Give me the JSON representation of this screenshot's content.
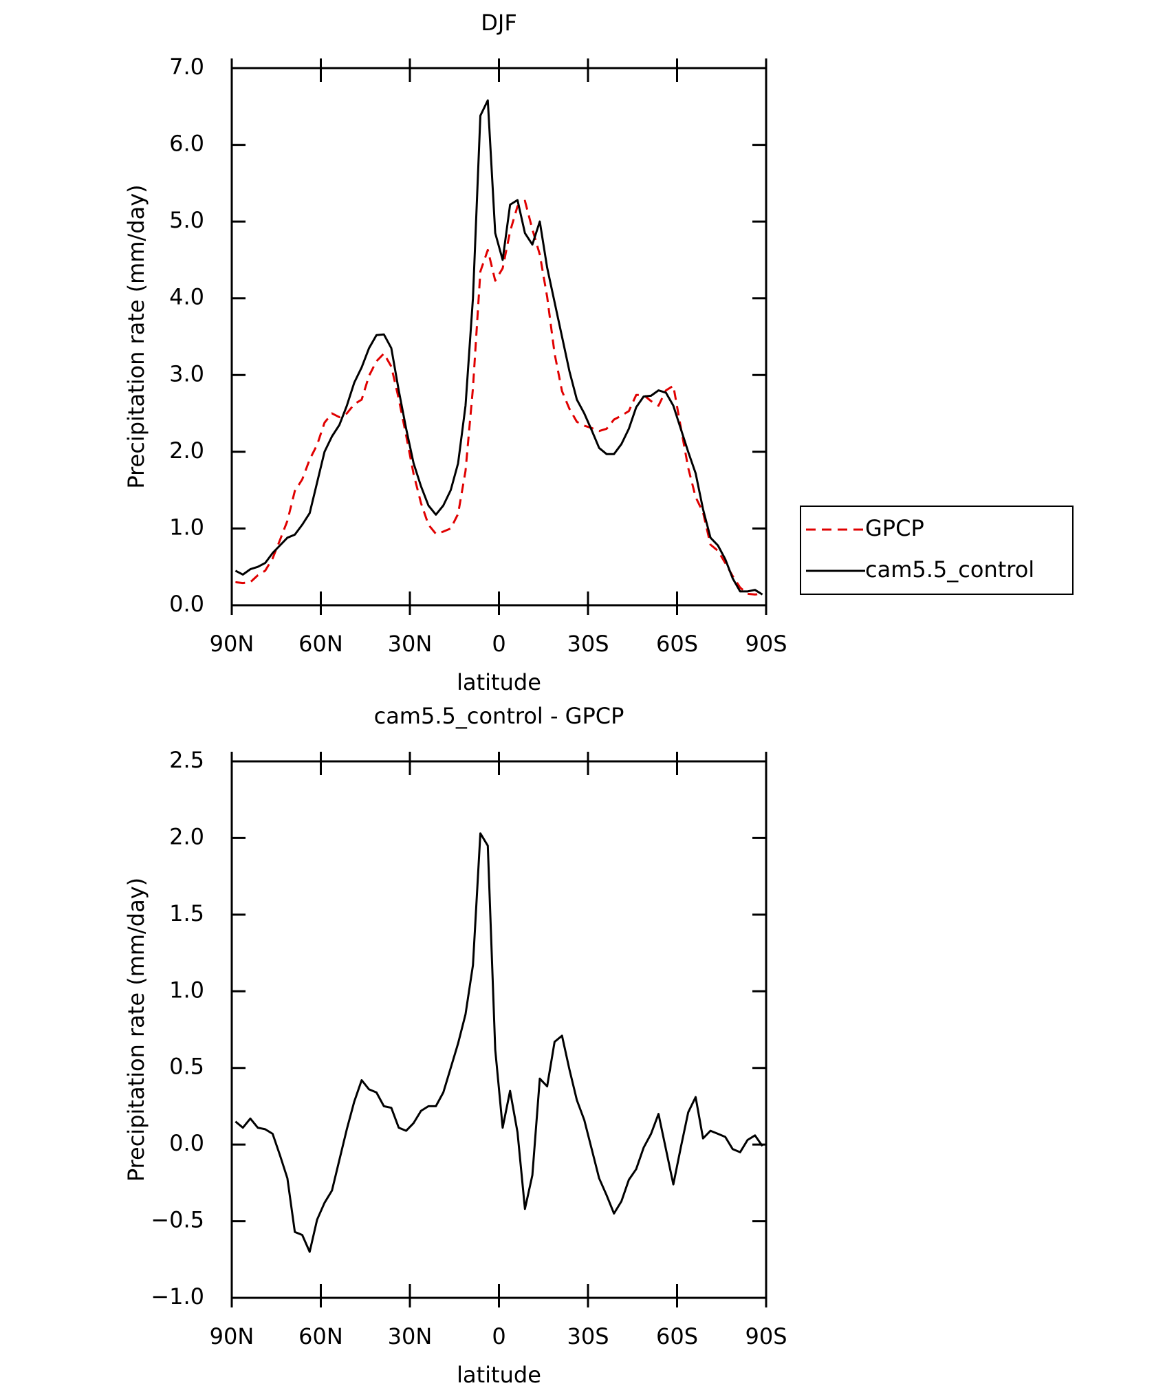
{
  "chart_data": [
    {
      "type": "line",
      "title": "DJF",
      "x_label": "latitude",
      "y_label": "Precipitation rate (mm/day)",
      "x": [
        88.75,
        86.25,
        83.75,
        81.25,
        78.75,
        76.25,
        73.75,
        71.25,
        68.75,
        66.25,
        63.75,
        61.25,
        58.75,
        56.25,
        53.75,
        51.25,
        48.75,
        46.25,
        43.75,
        41.25,
        38.75,
        36.25,
        33.75,
        31.25,
        28.75,
        26.25,
        23.75,
        21.25,
        18.75,
        16.25,
        13.75,
        11.25,
        8.75,
        6.25,
        3.75,
        1.25,
        -1.25,
        -3.75,
        -6.25,
        -8.75,
        -11.25,
        -13.75,
        -16.25,
        -18.75,
        -21.25,
        -23.75,
        -26.25,
        -28.75,
        -31.25,
        -33.75,
        -36.25,
        -38.75,
        -41.25,
        -43.75,
        -46.25,
        -48.75,
        -51.25,
        -53.75,
        -56.25,
        -58.75,
        -61.25,
        -63.75,
        -66.25,
        -68.75,
        -71.25,
        -73.75,
        -76.25,
        -78.75,
        -81.25,
        -83.75,
        -86.25,
        -88.75
      ],
      "series": [
        {
          "name": "GPCP",
          "color": "#e00000",
          "dash": true,
          "values": [
            0.3,
            0.29,
            0.3,
            0.39,
            0.45,
            0.61,
            0.85,
            1.1,
            1.49,
            1.64,
            1.9,
            2.09,
            2.38,
            2.5,
            2.45,
            2.5,
            2.62,
            2.68,
            2.99,
            3.18,
            3.28,
            3.11,
            2.69,
            2.21,
            1.71,
            1.33,
            1.05,
            0.93,
            0.96,
            1.0,
            1.19,
            1.75,
            2.83,
            4.35,
            4.63,
            4.23,
            4.39,
            4.87,
            5.2,
            5.27,
            4.9,
            4.57,
            4.02,
            3.28,
            2.79,
            2.56,
            2.39,
            2.34,
            2.31,
            2.27,
            2.3,
            2.42,
            2.47,
            2.53,
            2.74,
            2.74,
            2.66,
            2.6,
            2.8,
            2.86,
            2.32,
            1.79,
            1.41,
            1.21,
            0.79,
            0.71,
            0.55,
            0.38,
            0.23,
            0.15,
            0.14,
            0.15
          ]
        },
        {
          "name": "cam5.5_control",
          "color": "#000000",
          "dash": false,
          "values": [
            0.45,
            0.4,
            0.47,
            0.5,
            0.55,
            0.68,
            0.78,
            0.88,
            0.92,
            1.05,
            1.2,
            1.6,
            2.0,
            2.2,
            2.35,
            2.6,
            2.9,
            3.1,
            3.35,
            3.52,
            3.53,
            3.35,
            2.8,
            2.3,
            1.85,
            1.55,
            1.3,
            1.18,
            1.3,
            1.5,
            1.85,
            2.6,
            4.0,
            6.38,
            6.58,
            4.85,
            4.5,
            5.22,
            5.28,
            4.85,
            4.7,
            5.0,
            4.4,
            3.95,
            3.5,
            3.05,
            2.68,
            2.5,
            2.28,
            2.05,
            1.97,
            1.97,
            2.1,
            2.3,
            2.58,
            2.72,
            2.73,
            2.8,
            2.77,
            2.6,
            2.3,
            2.0,
            1.72,
            1.25,
            0.88,
            0.78,
            0.6,
            0.35,
            0.18,
            0.18,
            0.2,
            0.14
          ]
        }
      ],
      "xlim": [
        90,
        -90
      ],
      "xticks": [
        {
          "value": 90,
          "label": "90N"
        },
        {
          "value": 60,
          "label": "60N"
        },
        {
          "value": 30,
          "label": "30N"
        },
        0,
        {
          "value": -30,
          "label": "30S"
        },
        {
          "value": -60,
          "label": "60S"
        },
        {
          "value": -90,
          "label": "90S"
        }
      ],
      "ylim": [
        0,
        7
      ],
      "yticks": [
        {
          "value": 0,
          "label": "0.0"
        },
        {
          "value": 1,
          "label": "1.0"
        },
        {
          "value": 2,
          "label": "2.0"
        },
        {
          "value": 3,
          "label": "3.0"
        },
        {
          "value": 4,
          "label": "4.0"
        },
        {
          "value": 5,
          "label": "5.0"
        },
        {
          "value": 6,
          "label": "6.0"
        },
        {
          "value": 7,
          "label": "7.0"
        }
      ],
      "legend": "right"
    },
    {
      "type": "line",
      "title": "cam5.5_control - GPCP",
      "x_label": "latitude",
      "y_label": "Precipitation rate (mm/day)",
      "x": [
        88.75,
        86.25,
        83.75,
        81.25,
        78.75,
        76.25,
        73.75,
        71.25,
        68.75,
        66.25,
        63.75,
        61.25,
        58.75,
        56.25,
        53.75,
        51.25,
        48.75,
        46.25,
        43.75,
        41.25,
        38.75,
        36.25,
        33.75,
        31.25,
        28.75,
        26.25,
        23.75,
        21.25,
        18.75,
        16.25,
        13.75,
        11.25,
        8.75,
        6.25,
        3.75,
        1.25,
        -1.25,
        -3.75,
        -6.25,
        -8.75,
        -11.25,
        -13.75,
        -16.25,
        -18.75,
        -21.25,
        -23.75,
        -26.25,
        -28.75,
        -31.25,
        -33.75,
        -36.25,
        -38.75,
        -41.25,
        -43.75,
        -46.25,
        -48.75,
        -51.25,
        -53.75,
        -56.25,
        -58.75,
        -61.25,
        -63.75,
        -66.25,
        -68.75,
        -71.25,
        -73.75,
        -76.25,
        -78.75,
        -81.25,
        -83.75,
        -86.25,
        -88.75
      ],
      "series": [
        {
          "color": "#000000",
          "dash": false,
          "values": [
            0.15,
            0.11,
            0.17,
            0.11,
            0.1,
            0.07,
            -0.07,
            -0.22,
            -0.57,
            -0.59,
            -0.7,
            -0.49,
            -0.38,
            -0.3,
            -0.1,
            0.1,
            0.28,
            0.42,
            0.36,
            0.34,
            0.25,
            0.24,
            0.11,
            0.09,
            0.14,
            0.22,
            0.25,
            0.25,
            0.34,
            0.5,
            0.66,
            0.85,
            1.17,
            2.03,
            1.95,
            0.62,
            0.11,
            0.35,
            0.08,
            -0.42,
            -0.2,
            0.43,
            0.38,
            0.67,
            0.71,
            0.49,
            0.29,
            0.16,
            -0.03,
            -0.22,
            -0.33,
            -0.45,
            -0.37,
            -0.23,
            -0.16,
            -0.02,
            0.07,
            0.2,
            -0.03,
            -0.26,
            -0.02,
            0.21,
            0.31,
            0.04,
            0.09,
            0.07,
            0.05,
            -0.03,
            -0.05,
            0.03,
            0.06,
            -0.01
          ]
        }
      ],
      "xlim": [
        90,
        -90
      ],
      "xticks": [
        {
          "value": 90,
          "label": "90N"
        },
        {
          "value": 60,
          "label": "60N"
        },
        {
          "value": 30,
          "label": "30N"
        },
        0,
        {
          "value": -30,
          "label": "30S"
        },
        {
          "value": -60,
          "label": "60S"
        },
        {
          "value": -90,
          "label": "90S"
        }
      ],
      "ylim": [
        -1,
        2.5
      ],
      "yticks": [
        {
          "value": -1,
          "label": "−1.0"
        },
        {
          "value": -0.5,
          "label": "−0.5"
        },
        {
          "value": 0,
          "label": "0.0"
        },
        {
          "value": 0.5,
          "label": "0.5"
        },
        {
          "value": 1,
          "label": "1.0"
        },
        {
          "value": 1.5,
          "label": "1.5"
        },
        {
          "value": 2,
          "label": "2.0"
        },
        {
          "value": 2.5,
          "label": "2.5"
        }
      ]
    }
  ]
}
